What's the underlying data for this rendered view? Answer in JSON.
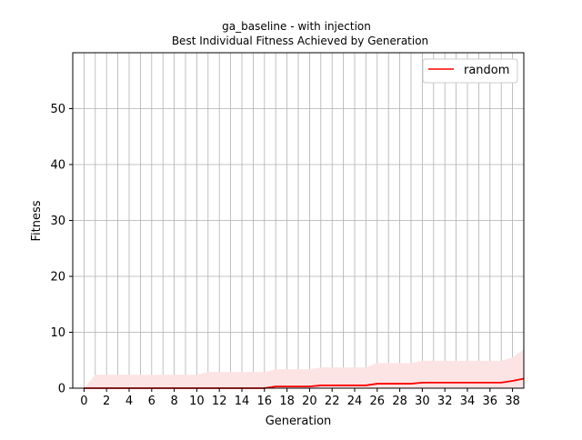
{
  "chart_data": {
    "type": "line",
    "title": "ga_baseline - with injection",
    "subtitle": "Best Individual Fitness Achieved by Generation",
    "xlabel": "Generation",
    "ylabel": "Fitness",
    "xlim": [
      -1,
      39
    ],
    "ylim": [
      0,
      60
    ],
    "xticks": [
      0,
      2,
      4,
      6,
      8,
      10,
      12,
      14,
      16,
      18,
      20,
      22,
      24,
      26,
      28,
      30,
      32,
      34,
      36,
      38
    ],
    "yticks": [
      0,
      10,
      20,
      30,
      40,
      50
    ],
    "grid": true,
    "grid_x_step": 1,
    "legend_position": "top-right",
    "colors": {
      "line": "#ff0000",
      "band": "#fde4e4",
      "grid": "#b0b0b0"
    },
    "x": [
      0,
      1,
      2,
      3,
      4,
      5,
      6,
      7,
      8,
      9,
      10,
      11,
      12,
      13,
      14,
      15,
      16,
      17,
      18,
      19,
      20,
      21,
      22,
      23,
      24,
      25,
      26,
      27,
      28,
      29,
      30,
      31,
      32,
      33,
      34,
      35,
      36,
      37,
      38,
      39
    ],
    "series": [
      {
        "name": "random",
        "values": [
          0,
          0,
          0,
          0,
          0,
          0,
          0,
          0,
          0,
          0,
          0,
          0,
          0,
          0,
          0,
          0,
          0,
          0.3,
          0.3,
          0.3,
          0.3,
          0.5,
          0.5,
          0.5,
          0.5,
          0.5,
          0.8,
          0.8,
          0.8,
          0.8,
          1.0,
          1.0,
          1.0,
          1.0,
          1.0,
          1.0,
          1.0,
          1.0,
          1.3,
          1.7
        ],
        "band_upper": [
          0,
          2.4,
          2.4,
          2.4,
          2.4,
          2.4,
          2.4,
          2.4,
          2.4,
          2.4,
          2.4,
          2.9,
          2.9,
          2.9,
          2.9,
          2.9,
          2.9,
          3.4,
          3.4,
          3.4,
          3.4,
          3.7,
          3.7,
          3.7,
          3.7,
          3.7,
          4.5,
          4.5,
          4.5,
          4.5,
          4.9,
          4.9,
          4.9,
          4.9,
          4.9,
          4.9,
          4.9,
          4.9,
          5.5,
          6.9
        ],
        "band_lower": [
          0,
          0,
          0,
          0,
          0,
          0,
          0,
          0,
          0,
          0,
          0,
          0,
          0,
          0,
          0,
          0,
          0,
          0,
          0,
          0,
          0,
          0,
          0,
          0,
          0,
          0,
          0,
          0,
          0,
          0,
          0,
          0,
          0,
          0,
          0,
          0,
          0,
          0,
          0,
          0
        ]
      }
    ]
  }
}
